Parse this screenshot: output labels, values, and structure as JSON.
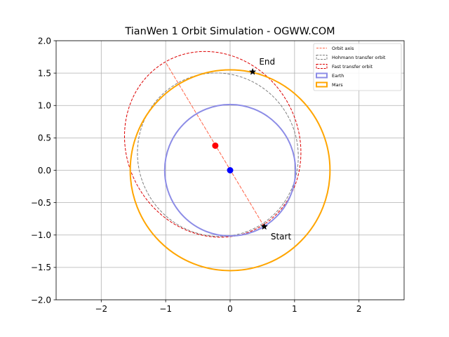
{
  "chart_data": {
    "type": "line",
    "title": "TianWen 1 Orbit Simulation - OGWW.COM",
    "xlabel": "",
    "ylabel": "",
    "xlim": [
      -2.7,
      2.7
    ],
    "ylim": [
      -2.0,
      2.0
    ],
    "aspect": "equal",
    "grid": true,
    "x_ticks": [
      -2,
      -1,
      0,
      1,
      2
    ],
    "x_tick_labels": [
      "−2",
      "−1",
      "0",
      "1",
      "2"
    ],
    "y_ticks": [
      -2.0,
      -1.5,
      -1.0,
      -0.5,
      0.0,
      0.5,
      1.0,
      1.5,
      2.0
    ],
    "y_tick_labels": [
      "−2.0",
      "−1.5",
      "−1.0",
      "−0.5",
      "0.0",
      "0.5",
      "1.0",
      "1.5",
      "2.0"
    ],
    "legend_position": "top-right",
    "series": [
      {
        "name": "Orbit axis",
        "kind": "line",
        "color": "#ff6347",
        "style": "dashed",
        "x": [
          -0.99,
          0.53
        ],
        "y": [
          1.65,
          -0.87
        ]
      },
      {
        "name": "Hohmann transfer orbit",
        "kind": "ellipse",
        "color": "#808080",
        "style": "dashed",
        "center": [
          -0.19,
          0.24
        ],
        "semi_major": 1.27,
        "semi_minor": 1.24,
        "rotation_deg": -58.9,
        "arc_visible": "full"
      },
      {
        "name": "Fast transfer orbit",
        "kind": "ellipse",
        "color": "#dd0000",
        "style": "dashed",
        "center": [
          -0.27,
          0.4
        ],
        "semi_major": 1.47,
        "semi_minor": 1.33,
        "rotation_deg": -58.9,
        "arc_visible": "full"
      },
      {
        "name": "Earth",
        "kind": "circle",
        "color": "#8c8ce6",
        "style": "solid",
        "center": [
          0,
          0
        ],
        "radius": 1.015
      },
      {
        "name": "Mars",
        "kind": "circle",
        "color": "#ffa500",
        "style": "solid",
        "center": [
          0,
          0
        ],
        "radius": 1.55
      }
    ],
    "points": [
      {
        "label": "Sun",
        "x": 0.0,
        "y": 0.0,
        "color": "#0000ff",
        "marker": "circle"
      },
      {
        "label": "Transfer orbit center",
        "x": -0.23,
        "y": 0.38,
        "color": "#ff0000",
        "marker": "circle"
      },
      {
        "label": "Start",
        "x": 0.53,
        "y": -0.87,
        "color": "#000000",
        "marker": "star"
      },
      {
        "label": "End",
        "x": 0.35,
        "y": 1.52,
        "color": "#000000",
        "marker": "star"
      }
    ],
    "annotations": [
      {
        "text": "Start",
        "x": 0.63,
        "y": -1.07
      },
      {
        "text": "End",
        "x": 0.45,
        "y": 1.63
      }
    ]
  }
}
